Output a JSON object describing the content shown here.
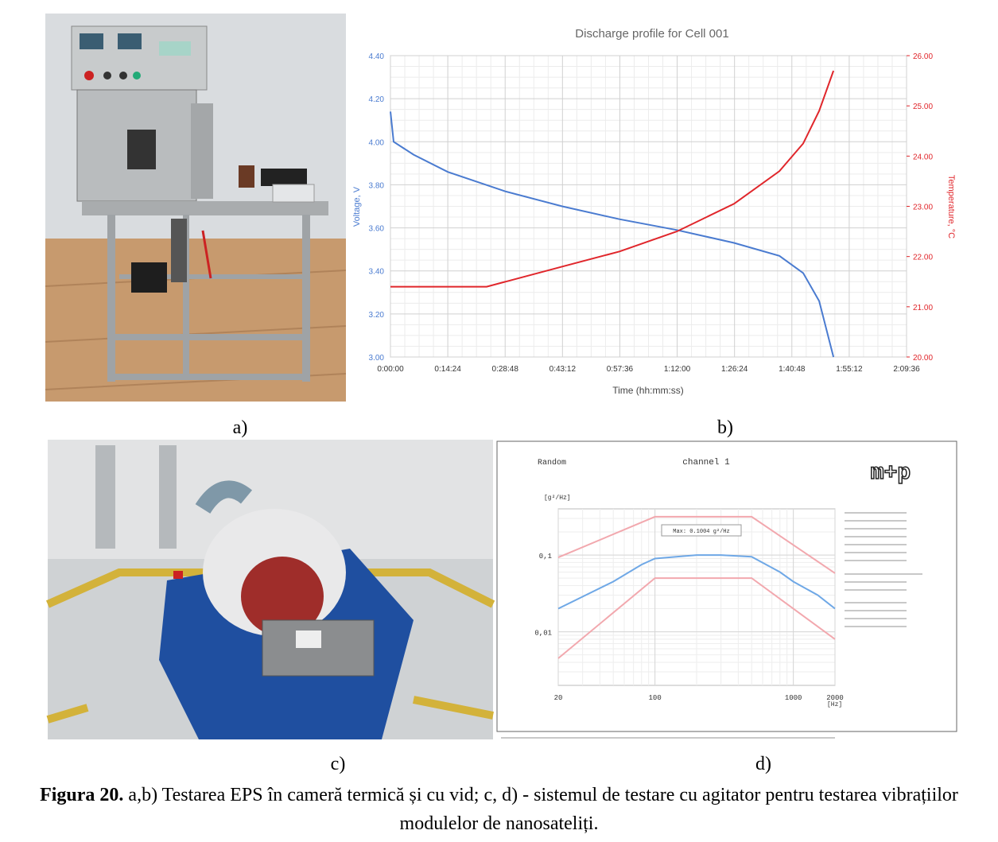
{
  "figure": {
    "panels": [
      "a)",
      "b)",
      "c)",
      "d)"
    ],
    "caption": {
      "label": "Figura 20.",
      "text": "a,b) Testarea EPS în cameră termică și cu vid; c, d) - sistemul de testare cu agitator pentru testarea vibrațiilor modulelor de nanosateliți."
    }
  },
  "chart_data": [
    {
      "type": "line",
      "title": "Discharge profile for Cell 001",
      "x_label": "Time (hh:mm:ss)",
      "y_label": "Voltage, V",
      "y2_label": "Temperature, °C",
      "xlim": [
        0,
        7776
      ],
      "xticks": [
        {
          "value": 0,
          "label": "0:00:00"
        },
        {
          "value": 864,
          "label": "0:14:24"
        },
        {
          "value": 1728,
          "label": "0:28:48"
        },
        {
          "value": 2592,
          "label": "0:43:12"
        },
        {
          "value": 3456,
          "label": "0:57:36"
        },
        {
          "value": 4320,
          "label": "1:12:00"
        },
        {
          "value": 5184,
          "label": "1:26:24"
        },
        {
          "value": 6048,
          "label": "1:40:48"
        },
        {
          "value": 6912,
          "label": "1:55:12"
        },
        {
          "value": 7776,
          "label": "2:09:36"
        }
      ],
      "ylim": [
        3,
        4.4
      ],
      "yticks": [
        {
          "value": 3,
          "label": "3.00"
        },
        {
          "value": 3.2,
          "label": "3.20"
        },
        {
          "value": 3.4,
          "label": "3.40"
        },
        {
          "value": 3.6,
          "label": "3.60"
        },
        {
          "value": 3.8,
          "label": "3.80"
        },
        {
          "value": 4,
          "label": "4.00"
        },
        {
          "value": 4.2,
          "label": "4.20"
        },
        {
          "value": 4.4,
          "label": "4.40"
        }
      ],
      "y2lim": [
        20,
        26
      ],
      "y2ticks": [
        {
          "value": 20,
          "label": "20.00"
        },
        {
          "value": 21,
          "label": "21.00"
        },
        {
          "value": 22,
          "label": "22.00"
        },
        {
          "value": 23,
          "label": "23.00"
        },
        {
          "value": 24,
          "label": "24.00"
        },
        {
          "value": 25,
          "label": "25.00"
        },
        {
          "value": 26,
          "label": "26.00"
        }
      ],
      "grid": true,
      "series": [
        {
          "color": "#4a7bd0",
          "x": [
            0,
            48,
            348,
            863,
            1726,
            2588,
            3451,
            4314,
            5177,
            5860,
            6219,
            6459,
            6675
          ],
          "values": [
            4.14,
            4.0,
            3.94,
            3.86,
            3.77,
            3.7,
            3.64,
            3.59,
            3.53,
            3.47,
            3.39,
            3.26,
            3.0
          ]
        },
        {
          "color": "#e0262b",
          "axis": "y2",
          "x": [
            0,
            1450,
            2588,
            3451,
            4314,
            5177,
            5860,
            6219,
            6459,
            6675
          ],
          "values": [
            21.4,
            21.4,
            21.8,
            22.1,
            22.5,
            23.05,
            23.7,
            24.25,
            24.9,
            25.7
          ]
        }
      ]
    },
    {
      "type": "line",
      "title": "channel 1",
      "mode_label": "Random",
      "logo": "m+p",
      "annotation": "Max: 0.1004 g²/Hz",
      "x_label": "[Hz]",
      "y_label": "[g²/Hz]",
      "xscale": "log",
      "yscale": "log",
      "xlim": [
        20,
        2000
      ],
      "xticks": [
        20,
        100,
        1000,
        2000
      ],
      "ylim": [
        0.002,
        0.4
      ],
      "yticks": [
        {
          "value": 0.1,
          "label": "0,1"
        },
        {
          "value": 0.01,
          "label": "0,01"
        }
      ],
      "grid": true,
      "series": [
        {
          "color": "#f2a8ae",
          "x": [
            20,
            100,
            500,
            2000
          ],
          "values": [
            0.093,
            0.316,
            0.316,
            0.058
          ]
        },
        {
          "color": "#f2a8ae",
          "x": [
            20,
            100,
            500,
            2000
          ],
          "values": [
            0.0045,
            0.05,
            0.05,
            0.008
          ]
        },
        {
          "color": "#6fa8e6",
          "x": [
            20,
            50,
            80,
            100,
            200,
            300,
            500,
            800,
            1000,
            1500,
            2000
          ],
          "values": [
            0.02,
            0.045,
            0.075,
            0.09,
            0.1,
            0.1,
            0.095,
            0.06,
            0.045,
            0.03,
            0.02
          ]
        }
      ]
    }
  ]
}
